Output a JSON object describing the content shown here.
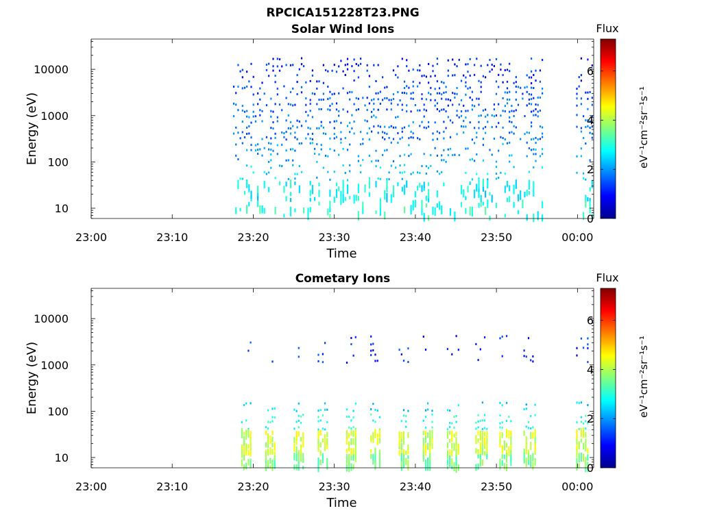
{
  "figure": {
    "title": "RPCICA151228T23.PNG"
  },
  "colorbar_gradient": [
    "#00008f",
    "#0000ff",
    "#0080ff",
    "#00ffff",
    "#80ff80",
    "#ffff00",
    "#ff8000",
    "#ff0000",
    "#800000"
  ],
  "chart_data": [
    {
      "type": "heatmap",
      "title": "Solar Wind Ions",
      "xlabel": "Time",
      "ylabel": "Energy (eV)",
      "y_scale": "log",
      "ylim": [
        6,
        45000
      ],
      "xlim": [
        "23:00",
        "00:02"
      ],
      "x_ticks": [
        "23:00",
        "23:10",
        "23:20",
        "23:30",
        "23:40",
        "23:50",
        "00:00"
      ],
      "y_ticks": [
        "10",
        "100",
        "1000",
        "10000"
      ],
      "colorbar": {
        "label": "Flux",
        "unit": "eV⁻¹cm⁻²sr⁻¹s⁻¹",
        "range": [
          0,
          7.3
        ],
        "ticks": [
          "0",
          "2",
          "4",
          "6"
        ]
      },
      "coverage": {
        "segments": [
          [
            "23:17:30",
            "23:55:50"
          ],
          [
            "23:59:50",
            "00:02:00"
          ]
        ]
      },
      "bands": [
        {
          "e_min": 5000,
          "e_max": 20000,
          "level": 1.2,
          "density": 0.22
        },
        {
          "e_min": 1200,
          "e_max": 5000,
          "level": 1.5,
          "density": 0.35
        },
        {
          "e_min": 300,
          "e_max": 1200,
          "level": 1.7,
          "density": 0.3
        },
        {
          "e_min": 100,
          "e_max": 300,
          "level": 2.0,
          "density": 0.18
        },
        {
          "e_min": 40,
          "e_max": 100,
          "level": 2.4,
          "density": 0.16
        },
        {
          "e_min": 15,
          "e_max": 40,
          "level": 2.7,
          "density": 0.14
        },
        {
          "e_min": 6,
          "e_max": 15,
          "level": 3.0,
          "density": 0.15
        }
      ]
    },
    {
      "type": "heatmap",
      "title": "Cometary Ions",
      "xlabel": "Time",
      "ylabel": "Energy (eV)",
      "y_scale": "log",
      "ylim": [
        6,
        45000
      ],
      "xlim": [
        "23:00",
        "00:02"
      ],
      "x_ticks": [
        "23:00",
        "23:10",
        "23:20",
        "23:30",
        "23:40",
        "23:50",
        "00:00"
      ],
      "y_ticks": [
        "10",
        "100",
        "1000",
        "10000"
      ],
      "colorbar": {
        "label": "Flux",
        "unit": "eV⁻¹cm⁻²sr⁻¹s⁻¹",
        "range": [
          0,
          7.3
        ],
        "ticks": [
          "0",
          "2",
          "4",
          "6"
        ]
      },
      "coverage": {
        "segments": [
          [
            "23:18:30",
            "23:55:30"
          ],
          [
            "23:59:50",
            "00:02:00"
          ]
        ]
      },
      "bursts": [
        "23:19",
        "23:22",
        "23:25:30",
        "23:28:30",
        "23:32",
        "23:35",
        "23:38:30",
        "23:41:30",
        "23:44:30",
        "23:48",
        "23:51",
        "23:54",
        "00:00:30"
      ],
      "bands": [
        {
          "e_min": 1100,
          "e_max": 5000,
          "level": 1.2,
          "density": 0.18,
          "burst_only": true
        },
        {
          "e_min": 100,
          "e_max": 180,
          "level": 2.4,
          "density": 0.3,
          "burst_only": true
        },
        {
          "e_min": 40,
          "e_max": 100,
          "level": 3.0,
          "density": 0.45,
          "burst_only": true
        },
        {
          "e_min": 12,
          "e_max": 40,
          "level": 4.2,
          "density": 0.7,
          "burst_only": true
        },
        {
          "e_min": 6,
          "e_max": 12,
          "level": 3.6,
          "density": 0.55,
          "burst_only": true
        }
      ]
    }
  ]
}
